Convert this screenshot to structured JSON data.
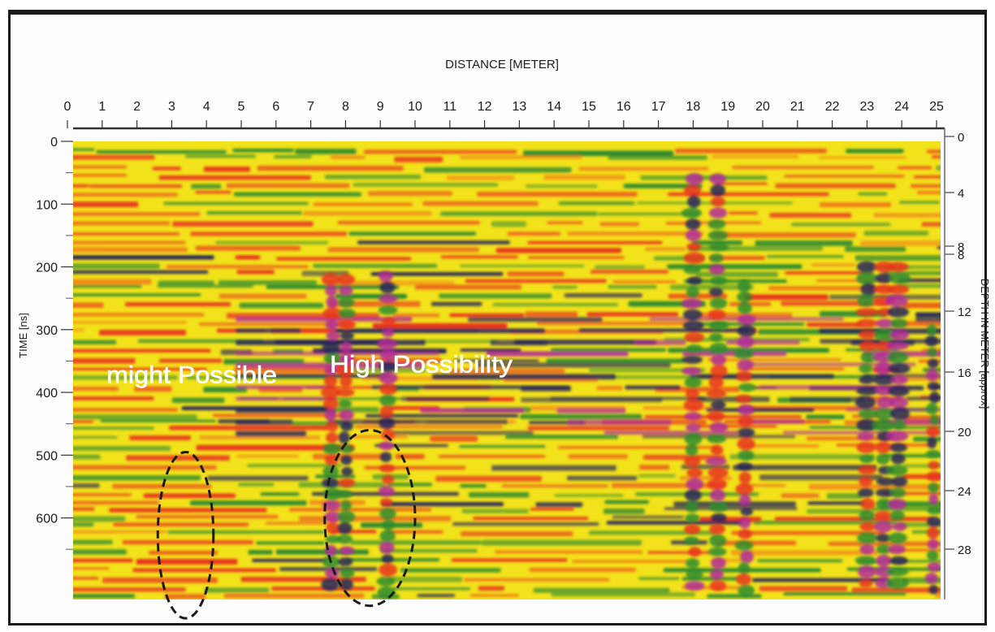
{
  "chart_data": {
    "type": "heatmap",
    "title": "",
    "xlabel": "DISTANCE [METER]",
    "ylabel": "TIME [ns]",
    "y2label": "DEPTH IN METER [approx]",
    "x_ticks": [
      "0",
      "1",
      "2",
      "3",
      "4",
      "5",
      "6",
      "7",
      "8",
      "9",
      "10",
      "11",
      "12",
      "13",
      "14",
      "15",
      "16",
      "17",
      "18",
      "19",
      "20",
      "21",
      "22",
      "23",
      "24",
      "25"
    ],
    "xlim": [
      0,
      25
    ],
    "y_ticks": [
      "0",
      "100",
      "200",
      "300",
      "400",
      "500",
      "600"
    ],
    "ylim": [
      0,
      730
    ],
    "y2_ticks": [
      "0",
      "4",
      "8",
      "8",
      "12",
      "16",
      "20",
      "24",
      "28"
    ],
    "annotations": [
      {
        "text": "might Possible",
        "x_range": [
          2.6,
          4.2
        ],
        "y_range": [
          495,
          760
        ]
      },
      {
        "text": "High Possibility",
        "x_range": [
          7.4,
          10.0
        ],
        "y_range": [
          460,
          740
        ]
      }
    ],
    "colors": {
      "background": "#f2e21a",
      "red": "#e8321e",
      "green": "#2e8b2e",
      "blue": "#23245c",
      "magenta": "#b0289a",
      "orange": "#f07a18"
    }
  }
}
